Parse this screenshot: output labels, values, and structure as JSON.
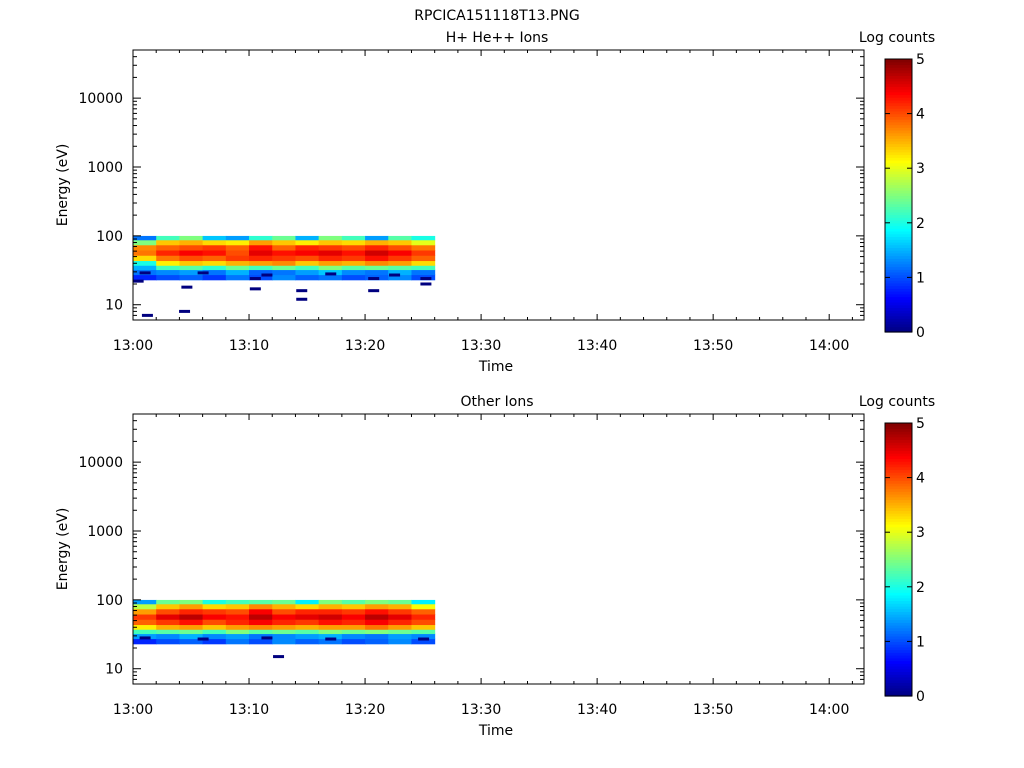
{
  "figure_title": "RPCICA151118T13.PNG",
  "chart_data": [
    {
      "type": "heatmap",
      "title": "H+ He++ Ions",
      "xlabel": "Time",
      "ylabel": "Energy (eV)",
      "y_scale": "log",
      "ylim": [
        6,
        50000
      ],
      "x_tick_labels": [
        "13:00",
        "13:10",
        "13:20",
        "13:30",
        "13:40",
        "13:50",
        "14:00"
      ],
      "y_tick_labels": [
        "10",
        "100",
        "1000",
        "10000"
      ],
      "colorbar": {
        "label": "Log counts",
        "range": [
          0,
          5
        ],
        "tick_labels": [
          "0",
          "1",
          "2",
          "3",
          "4",
          "5"
        ],
        "colormap": [
          "#00007f",
          "#0000ff",
          "#007fff",
          "#00ffff",
          "#7fff7f",
          "#ffff00",
          "#ff7f00",
          "#ff0000",
          "#7f0000"
        ]
      },
      "time_bins_minutes": [
        0,
        2,
        4,
        6,
        8,
        10,
        12,
        14,
        16,
        18,
        20,
        22,
        24
      ],
      "energy_bins_eV": [
        25,
        30,
        35,
        40,
        48,
        57,
        68,
        81,
        95
      ],
      "values": [
        [
          0.8,
          1.2,
          1.5,
          2.0,
          3.3,
          3.8,
          3.7,
          2.5,
          1.2
        ],
        [
          1.0,
          1.3,
          2.2,
          3.2,
          3.8,
          4.2,
          3.9,
          3.4,
          2.2
        ],
        [
          1.1,
          1.4,
          2.3,
          3.4,
          4.0,
          4.4,
          4.0,
          3.5,
          2.5
        ],
        [
          0.9,
          1.2,
          2.1,
          3.3,
          3.9,
          4.3,
          4.1,
          3.3,
          1.6
        ],
        [
          1.2,
          1.5,
          2.4,
          3.5,
          4.1,
          4.0,
          3.9,
          3.2,
          1.4
        ],
        [
          1.0,
          1.1,
          2.2,
          3.6,
          4.2,
          4.5,
          4.3,
          3.6,
          2.1
        ],
        [
          1.3,
          1.2,
          2.4,
          3.7,
          4.1,
          4.3,
          3.9,
          3.4,
          2.4
        ],
        [
          1.1,
          1.4,
          2.2,
          3.4,
          4.0,
          4.4,
          4.2,
          3.2,
          1.5
        ],
        [
          1.2,
          1.6,
          2.5,
          3.6,
          4.2,
          4.5,
          4.1,
          3.4,
          2.5
        ],
        [
          1.0,
          1.3,
          2.3,
          3.5,
          4.1,
          4.3,
          4.0,
          3.3,
          2.2
        ],
        [
          1.1,
          1.2,
          2.4,
          3.7,
          4.3,
          4.6,
          4.2,
          3.5,
          1.4
        ],
        [
          1.3,
          1.5,
          2.3,
          3.6,
          4.1,
          4.4,
          4.0,
          3.4,
          2.3
        ],
        [
          1.0,
          1.2,
          2.2,
          3.3,
          3.9,
          4.1,
          3.8,
          3.0,
          2.0
        ]
      ],
      "sparse_points": [
        {
          "t": 0.4,
          "e": 22
        },
        {
          "t": 1.2,
          "e": 7
        },
        {
          "t": 4.4,
          "e": 8
        },
        {
          "t": 4.6,
          "e": 18
        },
        {
          "t": 10.5,
          "e": 17
        },
        {
          "t": 10.5,
          "e": 24
        },
        {
          "t": 14.5,
          "e": 12
        },
        {
          "t": 14.5,
          "e": 16
        },
        {
          "t": 20.7,
          "e": 16
        },
        {
          "t": 20.7,
          "e": 24
        },
        {
          "t": 25.2,
          "e": 20
        },
        {
          "t": 25.2,
          "e": 24
        },
        {
          "t": 1.0,
          "e": 29
        },
        {
          "t": 6.0,
          "e": 29
        },
        {
          "t": 11.5,
          "e": 27
        },
        {
          "t": 17.0,
          "e": 28
        },
        {
          "t": 22.5,
          "e": 27
        }
      ]
    },
    {
      "type": "heatmap",
      "title": "Other Ions",
      "xlabel": "Time",
      "ylabel": "Energy (eV)",
      "y_scale": "log",
      "ylim": [
        6,
        50000
      ],
      "x_tick_labels": [
        "13:00",
        "13:10",
        "13:20",
        "13:30",
        "13:40",
        "13:50",
        "14:00"
      ],
      "y_tick_labels": [
        "10",
        "100",
        "1000",
        "10000"
      ],
      "colorbar": {
        "label": "Log counts",
        "range": [
          0,
          5
        ],
        "tick_labels": [
          "0",
          "1",
          "2",
          "3",
          "4",
          "5"
        ],
        "colormap": [
          "#00007f",
          "#0000ff",
          "#007fff",
          "#00ffff",
          "#7fff7f",
          "#ffff00",
          "#ff7f00",
          "#ff0000",
          "#7f0000"
        ]
      },
      "time_bins_minutes": [
        0,
        2,
        4,
        6,
        8,
        10,
        12,
        14,
        16,
        18,
        20,
        22,
        24
      ],
      "energy_bins_eV": [
        25,
        30,
        35,
        40,
        48,
        57,
        68,
        81,
        95
      ],
      "values": [
        [
          0.8,
          1.4,
          2.2,
          3.2,
          3.9,
          4.1,
          3.6,
          2.8,
          1.4
        ],
        [
          1.0,
          1.3,
          2.3,
          3.5,
          4.1,
          4.5,
          4.0,
          3.4,
          2.4
        ],
        [
          1.1,
          1.5,
          2.4,
          3.6,
          4.3,
          4.7,
          4.2,
          3.6,
          2.5
        ],
        [
          0.9,
          1.3,
          2.2,
          3.4,
          4.0,
          4.4,
          4.1,
          3.3,
          2.0
        ],
        [
          1.2,
          1.4,
          2.5,
          3.6,
          4.2,
          4.3,
          4.0,
          3.4,
          2.2
        ],
        [
          1.0,
          1.2,
          2.3,
          3.7,
          4.4,
          4.7,
          4.4,
          3.7,
          2.3
        ],
        [
          1.3,
          1.3,
          2.4,
          3.6,
          4.2,
          4.4,
          4.0,
          3.5,
          2.4
        ],
        [
          1.1,
          1.4,
          2.3,
          3.5,
          4.1,
          4.5,
          4.2,
          3.3,
          1.8
        ],
        [
          1.2,
          1.5,
          2.5,
          3.6,
          4.3,
          4.6,
          4.2,
          3.5,
          2.5
        ],
        [
          1.0,
          1.3,
          2.4,
          3.6,
          4.2,
          4.4,
          4.1,
          3.4,
          2.3
        ],
        [
          1.1,
          1.2,
          2.5,
          3.8,
          4.4,
          4.7,
          4.3,
          3.6,
          2.5
        ],
        [
          1.3,
          1.4,
          2.4,
          3.6,
          4.2,
          4.5,
          4.1,
          3.5,
          2.4
        ],
        [
          1.0,
          1.3,
          2.3,
          3.4,
          4.0,
          4.2,
          3.9,
          3.1,
          1.8
        ]
      ],
      "sparse_points": [
        {
          "t": 12.5,
          "e": 15
        },
        {
          "t": 1.0,
          "e": 28
        },
        {
          "t": 6.0,
          "e": 27
        },
        {
          "t": 11.5,
          "e": 28
        },
        {
          "t": 17.0,
          "e": 27
        },
        {
          "t": 25.0,
          "e": 27
        }
      ]
    }
  ]
}
